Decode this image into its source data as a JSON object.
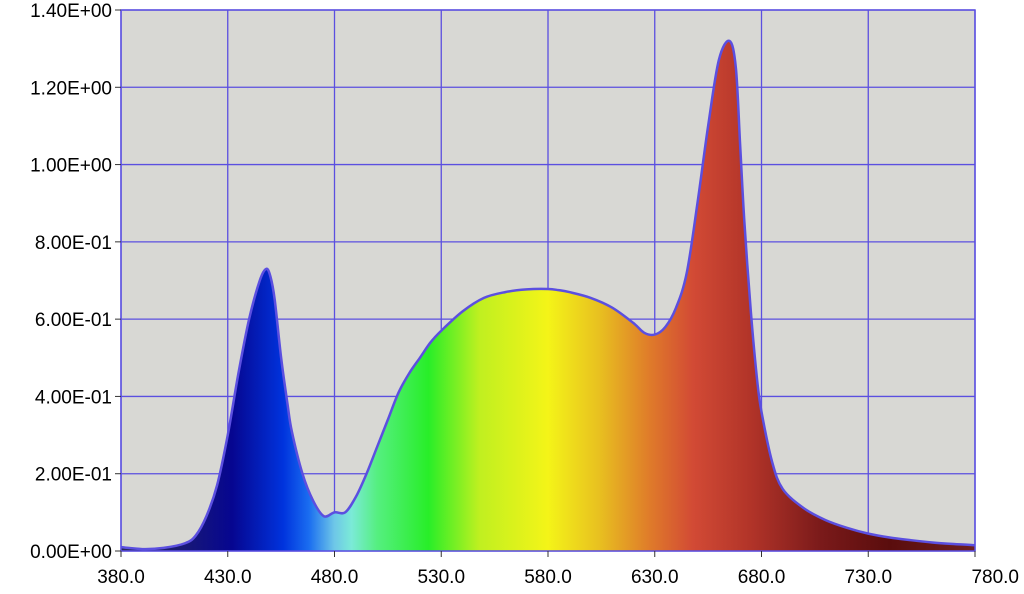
{
  "chart_data": {
    "type": "area",
    "title": "",
    "xlabel": "",
    "ylabel": "",
    "xlim": [
      380,
      780
    ],
    "ylim": [
      0,
      1.4
    ],
    "x_ticks": [
      "380.0",
      "430.0",
      "480.0",
      "530.0",
      "580.0",
      "630.0",
      "680.0",
      "730.0",
      "780.0"
    ],
    "y_ticks": [
      "0.00E+00",
      "2.00E-01",
      "4.00E-01",
      "6.00E-01",
      "8.00E-01",
      "1.00E+00",
      "1.20E+00",
      "1.40E+00"
    ],
    "grid": true,
    "legend": "none",
    "colors": {
      "plot_background": "#d8d8d4",
      "grid_line": "#5b4fe0",
      "curve_line": "#5b4fe0",
      "fill": "spectral gradient (visible wavelength colours)"
    },
    "series": [
      {
        "x": [
          380,
          390,
          400,
          410,
          415,
          420,
          425,
          430,
          435,
          440,
          445,
          448,
          450,
          452,
          455,
          458,
          460,
          465,
          470,
          475,
          480,
          485,
          490,
          495,
          500,
          505,
          510,
          515,
          520,
          525,
          530,
          540,
          550,
          560,
          570,
          580,
          585,
          590,
          600,
          610,
          620,
          625,
          630,
          635,
          640,
          645,
          650,
          655,
          660,
          665,
          668,
          670,
          672,
          675,
          678,
          680,
          685,
          690,
          700,
          710,
          720,
          730,
          740,
          750,
          760,
          770,
          780
        ],
        "values": [
          0.01,
          0.005,
          0.008,
          0.02,
          0.04,
          0.09,
          0.17,
          0.3,
          0.46,
          0.6,
          0.7,
          0.73,
          0.71,
          0.65,
          0.5,
          0.38,
          0.31,
          0.2,
          0.13,
          0.09,
          0.1,
          0.1,
          0.14,
          0.2,
          0.27,
          0.34,
          0.41,
          0.46,
          0.5,
          0.54,
          0.57,
          0.62,
          0.655,
          0.67,
          0.677,
          0.678,
          0.675,
          0.67,
          0.655,
          0.63,
          0.59,
          0.565,
          0.56,
          0.58,
          0.63,
          0.72,
          0.9,
          1.1,
          1.27,
          1.32,
          1.25,
          1.05,
          0.85,
          0.62,
          0.44,
          0.36,
          0.23,
          0.16,
          0.11,
          0.08,
          0.06,
          0.045,
          0.035,
          0.028,
          0.022,
          0.018,
          0.015
        ]
      }
    ]
  }
}
